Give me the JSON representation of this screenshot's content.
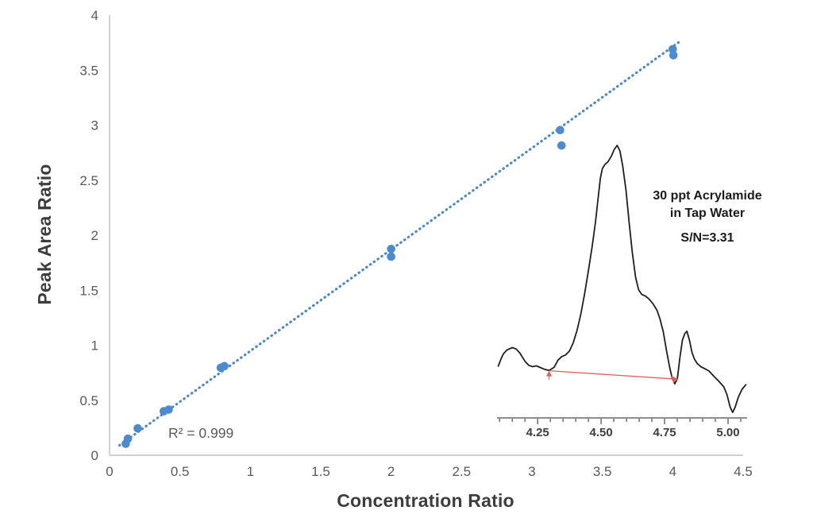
{
  "chart_data": [
    {
      "type": "scatter",
      "name": "acrylamide-calibration-curve",
      "title": "",
      "xlabel": "Concentration Ratio",
      "ylabel": "Peak Area Ratio",
      "xlim": [
        0,
        4.5
      ],
      "ylim": [
        0,
        4
      ],
      "grid": false,
      "x_tick_values": [
        0,
        0.5,
        1,
        1.5,
        2,
        2.5,
        3,
        3.5,
        4,
        4.5
      ],
      "x_tick_labels": [
        "0",
        "0.5",
        "1",
        "1.5",
        "2",
        "2.5",
        "3",
        "3.5",
        "4",
        "4.5"
      ],
      "y_tick_values": [
        0,
        0.5,
        1,
        1.5,
        2,
        2.5,
        3,
        3.5,
        4
      ],
      "y_tick_labels": [
        "0",
        "0.5",
        "1",
        "1.5",
        "2",
        "2.5",
        "3",
        "3.5",
        "4"
      ],
      "points": [
        [
          0.115,
          0.105
        ],
        [
          0.13,
          0.15
        ],
        [
          0.2,
          0.245
        ],
        [
          0.385,
          0.4
        ],
        [
          0.42,
          0.415
        ],
        [
          0.79,
          0.795
        ],
        [
          0.815,
          0.81
        ],
        [
          2.0,
          1.875
        ],
        [
          2.0,
          1.805
        ],
        [
          3.2,
          2.955
        ],
        [
          3.21,
          2.815
        ],
        [
          4.0,
          3.69
        ],
        [
          4.005,
          3.635
        ]
      ],
      "trendline": {
        "x1": 0.07,
        "y1": 0.09,
        "x2": 4.05,
        "y2": 3.76,
        "style": "dotted",
        "r2_label": "R² = 0.999"
      },
      "colors": {
        "points": "#4d8bd0",
        "trendline": "#4d88c9",
        "axis_line": "#bfbfbf",
        "tick_text": "#595959",
        "title_text": "#3d3d3d"
      }
    },
    {
      "type": "line",
      "name": "chromatogram-inset",
      "annotation_line1": "30 ppt Acrylamide",
      "annotation_line2": "in Tap Water",
      "sn_label": "S/N=3.31",
      "xlim": [
        4.09,
        5.075
      ],
      "ylim": [
        0,
        100
      ],
      "x_tick_values": [
        4.25,
        4.5,
        4.75,
        5.0
      ],
      "x_tick_labels": [
        "4.25",
        "4.50",
        "4.75",
        "5.00"
      ],
      "minor_tick_start": 4.1,
      "minor_tick_step": 0.05,
      "minor_tick_end": 5.05,
      "series": [
        {
          "name": "signal",
          "points": [
            [
              4.095,
              19.0
            ],
            [
              4.105,
              21.5
            ],
            [
              4.115,
              23.5
            ],
            [
              4.13,
              25.0
            ],
            [
              4.15,
              25.8
            ],
            [
              4.165,
              25.3
            ],
            [
              4.18,
              23.8
            ],
            [
              4.2,
              20.8
            ],
            [
              4.215,
              19.3
            ],
            [
              4.23,
              18.8
            ],
            [
              4.245,
              19.1
            ],
            [
              4.26,
              18.5
            ],
            [
              4.275,
              17.9
            ],
            [
              4.295,
              17.4
            ],
            [
              4.315,
              18.6
            ],
            [
              4.33,
              21.2
            ],
            [
              4.345,
              22.5
            ],
            [
              4.36,
              23.1
            ],
            [
              4.375,
              24.5
            ],
            [
              4.39,
              27.5
            ],
            [
              4.405,
              32.0
            ],
            [
              4.42,
              38.0
            ],
            [
              4.435,
              45.5
            ],
            [
              4.45,
              54.0
            ],
            [
              4.465,
              63.0
            ],
            [
              4.478,
              72.0
            ],
            [
              4.488,
              80.5
            ],
            [
              4.497,
              88.0
            ],
            [
              4.505,
              91.5
            ],
            [
              4.515,
              93.0
            ],
            [
              4.527,
              94.0
            ],
            [
              4.54,
              96.0
            ],
            [
              4.552,
              98.5
            ],
            [
              4.563,
              100.0
            ],
            [
              4.574,
              98.0
            ],
            [
              4.585,
              92.5
            ],
            [
              4.598,
              83.5
            ],
            [
              4.61,
              72.0
            ],
            [
              4.623,
              60.5
            ],
            [
              4.636,
              51.5
            ],
            [
              4.648,
              47.0
            ],
            [
              4.66,
              45.3
            ],
            [
              4.675,
              44.7
            ],
            [
              4.69,
              43.5
            ],
            [
              4.705,
              41.8
            ],
            [
              4.72,
              39.5
            ],
            [
              4.732,
              36.3
            ],
            [
              4.745,
              31.5
            ],
            [
              4.757,
              25.0
            ],
            [
              4.77,
              18.5
            ],
            [
              4.78,
              14.5
            ],
            [
              4.79,
              12.5
            ],
            [
              4.8,
              14.3
            ],
            [
              4.81,
              22.0
            ],
            [
              4.82,
              28.5
            ],
            [
              4.83,
              31.0
            ],
            [
              4.838,
              31.8
            ],
            [
              4.848,
              28.5
            ],
            [
              4.858,
              24.0
            ],
            [
              4.868,
              21.5
            ],
            [
              4.88,
              19.8
            ],
            [
              4.895,
              18.7
            ],
            [
              4.91,
              18.0
            ],
            [
              4.925,
              17.2
            ],
            [
              4.94,
              15.7
            ],
            [
              4.955,
              14.3
            ],
            [
              4.97,
              12.8
            ],
            [
              4.983,
              11.4
            ],
            [
              4.996,
              8.5
            ],
            [
              5.008,
              4.0
            ],
            [
              5.018,
              2.0
            ],
            [
              5.028,
              4.0
            ],
            [
              5.04,
              7.5
            ],
            [
              5.055,
              10.5
            ],
            [
              5.07,
              12.2
            ]
          ]
        }
      ],
      "baseline_marker": {
        "x1": 4.295,
        "y1": 17.3,
        "x2": 4.803,
        "y2": 14.2
      },
      "colors": {
        "line": "#1f1f1f",
        "axis_line": "#4a4a4a",
        "tick_text": "#3d3d3d",
        "baseline": "#d9605c"
      }
    }
  ]
}
